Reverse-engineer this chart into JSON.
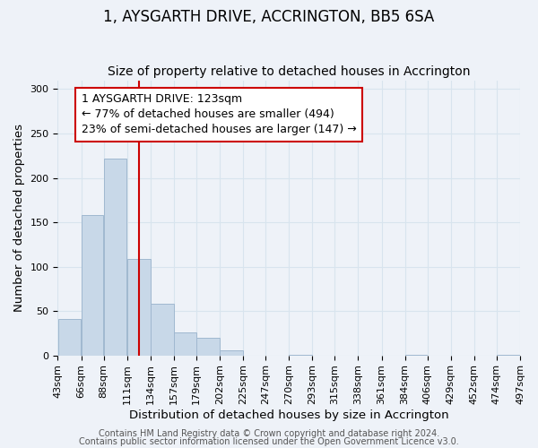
{
  "title": "1, AYSGARTH DRIVE, ACCRINGTON, BB5 6SA",
  "subtitle": "Size of property relative to detached houses in Accrington",
  "xlabel": "Distribution of detached houses by size in Accrington",
  "ylabel": "Number of detached properties",
  "bar_left_edges": [
    43,
    66,
    88,
    111,
    134,
    157,
    179,
    202,
    225,
    247,
    270,
    293,
    315,
    338,
    361,
    384,
    406,
    429,
    452,
    474
  ],
  "bar_widths": [
    23,
    22,
    23,
    23,
    23,
    22,
    23,
    23,
    22,
    23,
    23,
    22,
    23,
    23,
    23,
    22,
    23,
    23,
    22,
    23
  ],
  "bar_heights": [
    41,
    158,
    222,
    109,
    58,
    26,
    20,
    6,
    0,
    0,
    1,
    0,
    0,
    0,
    0,
    1,
    0,
    0,
    0,
    1
  ],
  "bar_color": "#c8d8e8",
  "bar_edge_color": "#a0b8d0",
  "tick_labels": [
    "43sqm",
    "66sqm",
    "88sqm",
    "111sqm",
    "134sqm",
    "157sqm",
    "179sqm",
    "202sqm",
    "225sqm",
    "247sqm",
    "270sqm",
    "293sqm",
    "315sqm",
    "338sqm",
    "361sqm",
    "384sqm",
    "406sqm",
    "429sqm",
    "452sqm",
    "474sqm",
    "497sqm"
  ],
  "vline_x": 123,
  "vline_color": "#cc0000",
  "ylim": [
    0,
    310
  ],
  "yticks": [
    0,
    50,
    100,
    150,
    200,
    250,
    300
  ],
  "annotation_box_text": "1 AYSGARTH DRIVE: 123sqm\n← 77% of detached houses are smaller (494)\n23% of semi-detached houses are larger (147) →",
  "annotation_box_color": "#cc0000",
  "annotation_box_bg": "#ffffff",
  "grid_color": "#d8e4ee",
  "bg_color": "#eef2f8",
  "footer_line1": "Contains HM Land Registry data © Crown copyright and database right 2024.",
  "footer_line2": "Contains public sector information licensed under the Open Government Licence v3.0.",
  "title_fontsize": 12,
  "subtitle_fontsize": 10,
  "label_fontsize": 9.5,
  "tick_fontsize": 8,
  "annotation_fontsize": 9,
  "footer_fontsize": 7
}
